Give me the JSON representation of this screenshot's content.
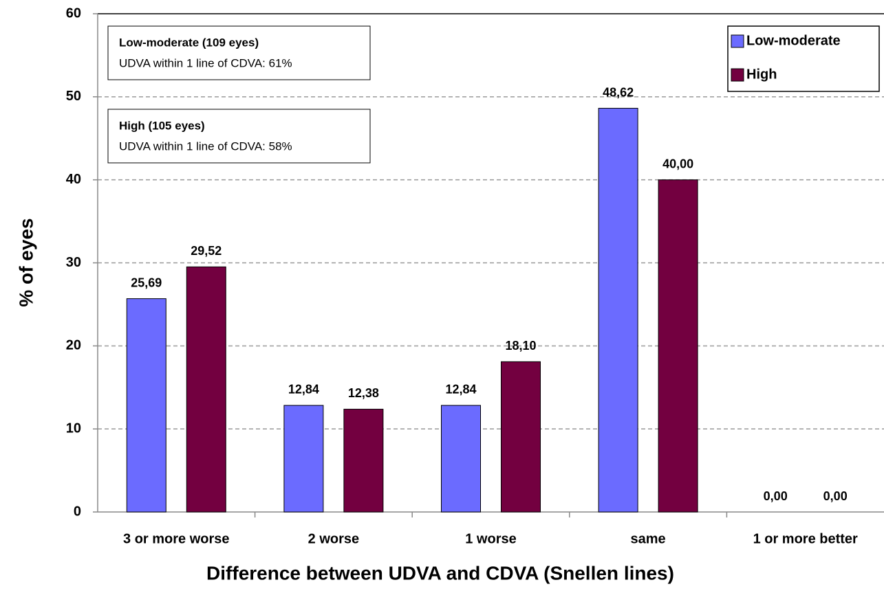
{
  "chart_data": {
    "type": "bar",
    "xlabel": "Difference between UDVA and CDVA (Snellen lines)",
    "ylabel": "% of eyes",
    "categories": [
      "3 or more worse",
      "2 worse",
      "1 worse",
      "same",
      "1 or more better"
    ],
    "series": [
      {
        "name": "Low-moderate",
        "color": "#6b6bff",
        "values": [
          25.69,
          12.84,
          12.84,
          48.62,
          0
        ],
        "value_labels": [
          "25,69",
          "12,84",
          "12,84",
          "48,62",
          "0,00"
        ]
      },
      {
        "name": "High",
        "color": "#730040",
        "values": [
          29.52,
          12.38,
          18.1,
          40.0,
          0
        ],
        "value_labels": [
          "29,52",
          "12,38",
          "18,10",
          "40,00",
          "0,00"
        ]
      }
    ],
    "ylim": [
      0,
      60
    ],
    "yticks": [
      0,
      10,
      20,
      30,
      40,
      50,
      60
    ],
    "grid": true,
    "legend": "upper right",
    "annotations": [
      {
        "title": "Low-moderate (109 eyes)",
        "text": "UDVA within 1 line of CDVA: 61%"
      },
      {
        "title": "High (105 eyes)",
        "text": "UDVA within 1 line of CDVA: 58%"
      }
    ]
  }
}
